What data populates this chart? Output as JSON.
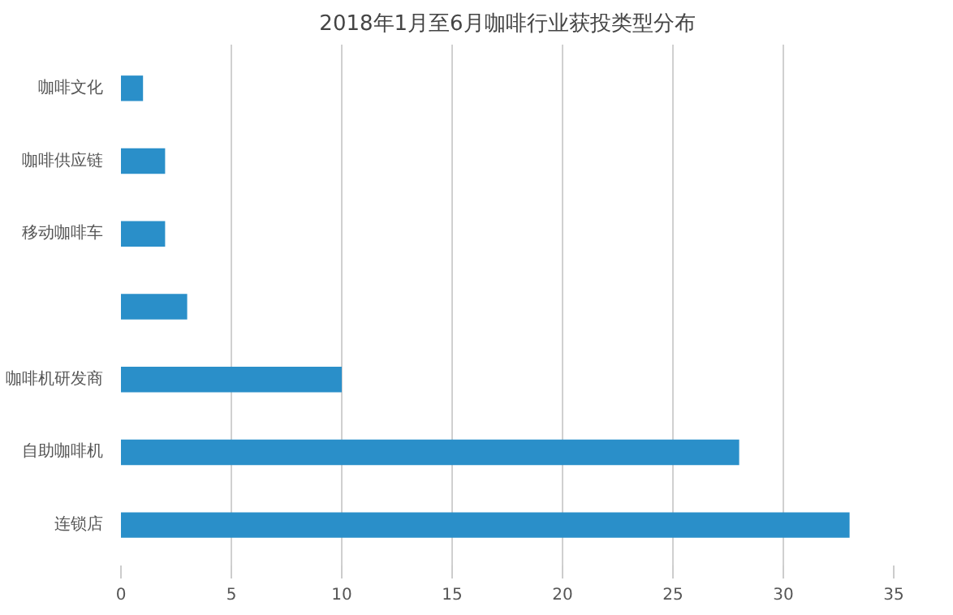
{
  "chart_data": {
    "type": "bar",
    "orientation": "horizontal",
    "title": "2018年1月至6月咖啡行业获投类型分布",
    "categories": [
      "咖啡文化",
      "咖啡供应链",
      "移动咖啡车",
      null,
      "咖啡机研发商",
      "自助咖啡机",
      "连锁店"
    ],
    "values": [
      1,
      2,
      2,
      3,
      10,
      28,
      33
    ],
    "color": "#2a8fc9",
    "xlim": [
      0,
      35
    ],
    "xticks": [
      0,
      5,
      10,
      15,
      20,
      25,
      30,
      35
    ],
    "grid": "x"
  }
}
